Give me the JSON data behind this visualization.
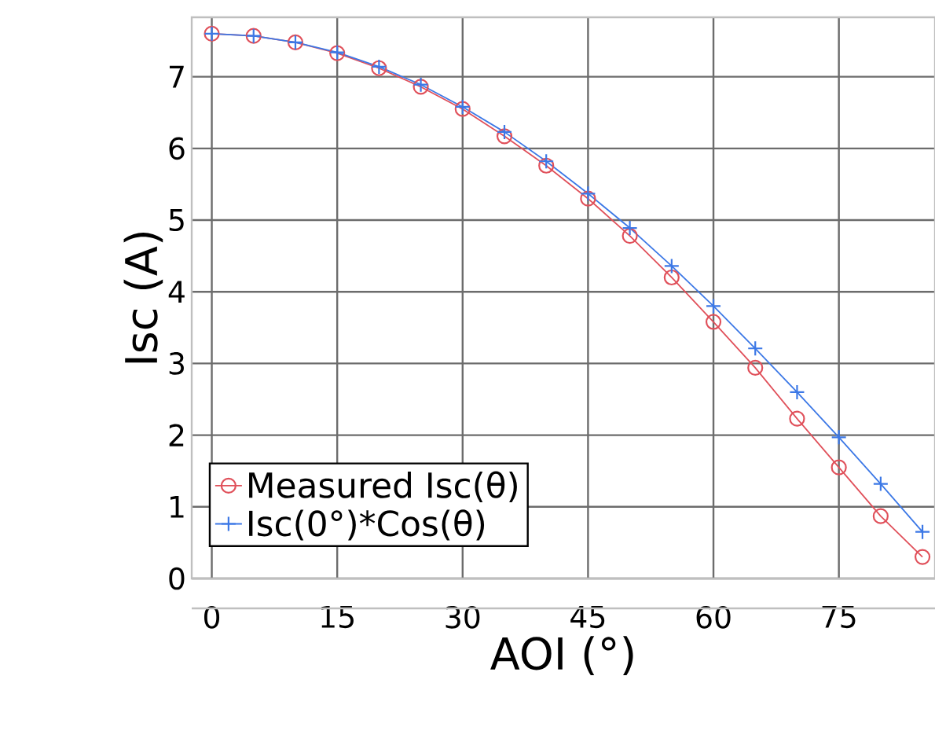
{
  "chart_data": {
    "type": "line",
    "xlabel": "AOI (°)",
    "ylabel": "Isc (A)",
    "x": [
      0,
      5,
      10,
      15,
      20,
      25,
      30,
      35,
      40,
      45,
      50,
      55,
      60,
      65,
      70,
      75,
      80,
      85
    ],
    "series": [
      {
        "name": "Measured Isc(θ)",
        "color": "#e0505a",
        "marker": "circle",
        "values": [
          7.6,
          7.57,
          7.48,
          7.33,
          7.12,
          6.86,
          6.55,
          6.17,
          5.76,
          5.3,
          4.78,
          4.2,
          3.58,
          2.94,
          2.23,
          1.55,
          0.87,
          0.3
        ]
      },
      {
        "name": "Isc(0°)*Cos(θ)",
        "color": "#3c78e6",
        "marker": "cross",
        "values": [
          7.6,
          7.57,
          7.48,
          7.34,
          7.14,
          6.89,
          6.58,
          6.23,
          5.82,
          5.37,
          4.89,
          4.36,
          3.8,
          3.21,
          2.6,
          1.97,
          1.32,
          0.65
        ]
      }
    ],
    "xlim": [
      -2.4,
      86.5
    ],
    "ylim": [
      0,
      7.83
    ],
    "xticks": [
      0,
      15,
      30,
      45,
      60,
      75
    ],
    "yticks": [
      0,
      1,
      2,
      3,
      4,
      5,
      6,
      7
    ],
    "grid": true,
    "legend": "bottom left",
    "line_style": "solid"
  }
}
